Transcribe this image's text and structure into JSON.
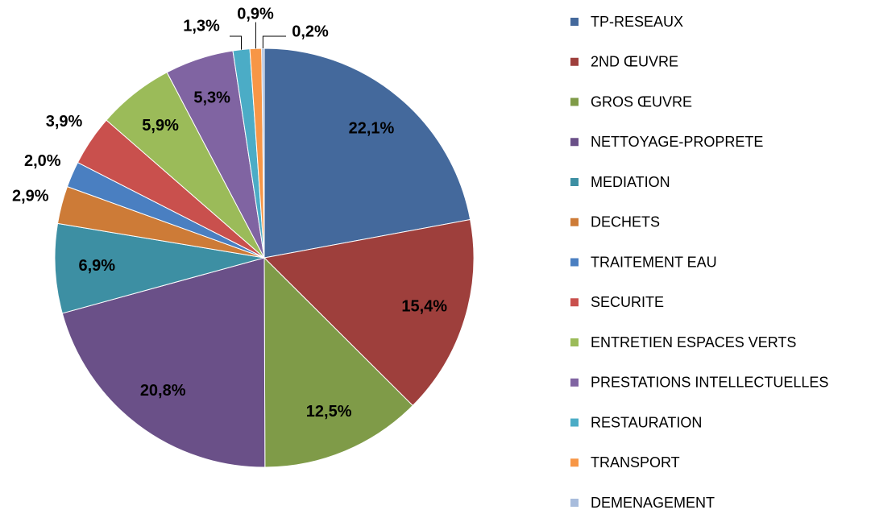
{
  "chart_data": {
    "type": "pie",
    "categories": [
      "TP-RESEAUX",
      "2ND ŒUVRE",
      "GROS ŒUVRE",
      "NETTOYAGE-PROPRETE",
      "MEDIATION",
      "DECHETS",
      "TRAITEMENT EAU",
      "SECURITE",
      "ENTRETIEN ESPACES VERTS",
      "PRESTATIONS INTELLECTUELLES",
      "RESTAURATION",
      "TRANSPORT",
      "DEMENAGEMENT"
    ],
    "values": [
      22.1,
      15.4,
      12.5,
      20.8,
      6.9,
      2.9,
      2.0,
      3.9,
      5.9,
      5.3,
      1.3,
      0.9,
      0.2
    ],
    "value_labels": [
      "22,1%",
      "15,4%",
      "12,5%",
      "20,8%",
      "6,9%",
      "2,9%",
      "2,0%",
      "3,9%",
      "5,9%",
      "5,3%",
      "1,3%",
      "0,9%",
      "0,2%"
    ],
    "colors": [
      "#44699c",
      "#9e3f3c",
      "#7f9b48",
      "#6a5088",
      "#3d8fa3",
      "#cd7b37",
      "#4a7fc1",
      "#c9504d",
      "#9bbb59",
      "#8064a2",
      "#4bacc6",
      "#f79646",
      "#a8bcdc"
    ],
    "legend": "right"
  }
}
